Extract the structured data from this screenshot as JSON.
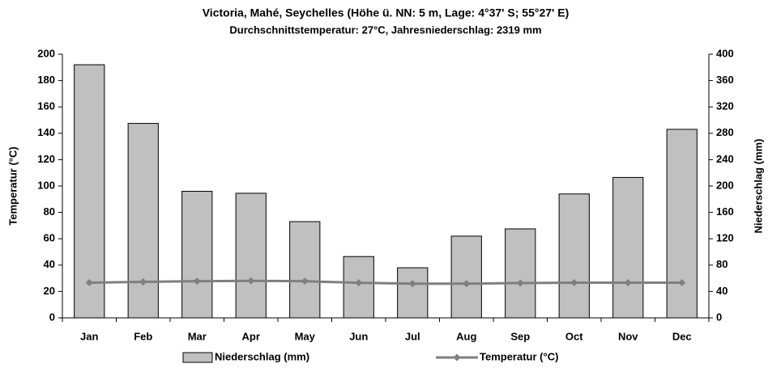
{
  "chart_data": {
    "type": "bar-line",
    "title": "Victoria, Mahé, Seychelles (Höhe ü. NN: 5 m, Lage: 4°37' S; 55°27' E)",
    "subtitle": "Durchschnittstemperatur: 27°C, Jahresniederschlag: 2319 mm",
    "ylabel": "Temperatur (°C)",
    "y2label": "Niederschlag (mm)",
    "categories": [
      "Jan",
      "Feb",
      "Mar",
      "Apr",
      "May",
      "Jun",
      "Jul",
      "Aug",
      "Sep",
      "Oct",
      "Nov",
      "Dec"
    ],
    "series": [
      {
        "name": "Niederschlag (mm)",
        "type": "bar",
        "axis": "y2",
        "color": "#c0c0c0",
        "values": [
          384,
          295,
          192,
          189,
          146,
          93,
          76,
          124,
          135,
          188,
          213,
          286
        ]
      },
      {
        "name": "Temperatur (°C)",
        "type": "line",
        "axis": "y",
        "color": "#7f7f7f",
        "values": [
          26.7,
          27.3,
          27.8,
          28.1,
          27.8,
          26.6,
          25.9,
          25.9,
          26.4,
          26.7,
          26.7,
          26.7
        ]
      }
    ],
    "ylim": [
      0,
      200
    ],
    "yticks": [
      0,
      20,
      40,
      60,
      80,
      100,
      120,
      140,
      160,
      180,
      200
    ],
    "y2lim": [
      0,
      400
    ],
    "y2ticks": [
      0,
      40,
      80,
      120,
      160,
      200,
      240,
      280,
      320,
      360,
      400
    ],
    "grid": false,
    "legend": "bottom"
  }
}
